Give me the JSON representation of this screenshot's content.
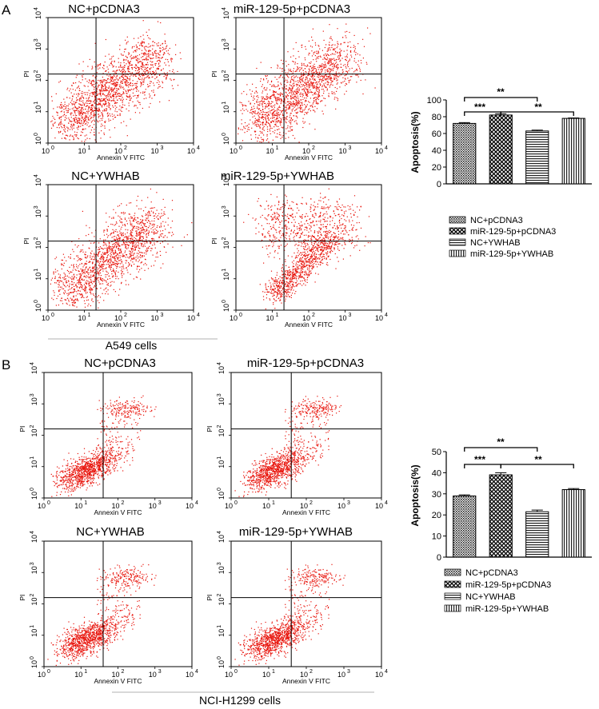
{
  "panels": [
    {
      "letter": "A",
      "cell_line": "A549 cells",
      "flow_titles": [
        "NC+pCDNA3",
        "miR-129-5p+pCDNA3",
        "NC+YWHAB",
        "miR-129-5p+YWHAB"
      ],
      "flow_xlabel": "Annexin V FITC",
      "flow_ylabel": "PI",
      "significance": [
        "**",
        "***",
        "**"
      ],
      "legend": [
        "NC+pCDNA3",
        "miR-129-5p+pCDNA3",
        "NC+YWHAB",
        "miR-129-5p+YWHAB"
      ]
    },
    {
      "letter": "B",
      "cell_line": "NCI-H1299 cells",
      "flow_titles": [
        "NC+pCDNA3",
        "miR-129-5p+pCDNA3",
        "NC+YWHAB",
        "miR-129-5p+YWHAB"
      ],
      "flow_xlabel": "Annexin V FITC",
      "flow_ylabel": "PI",
      "significance": [
        "**",
        "***",
        "**"
      ],
      "legend": [
        "NC+pCDNA3",
        "miR-129-5p+pCDNA3",
        "NC+YWHAB",
        "miR-129-5p+YWHAB"
      ]
    }
  ],
  "chart_data": [
    {
      "type": "bar",
      "categories": [
        "NC+pCDNA3",
        "miR-129-5p+pCDNA3",
        "NC+YWHAB",
        "miR-129-5p+YWHAB"
      ],
      "values": [
        72,
        82,
        63,
        78
      ],
      "errors": [
        1,
        1.5,
        1,
        0.5
      ],
      "ylabel": "Apoptosis(%)",
      "ylim": [
        0,
        100
      ],
      "yticks": [
        0,
        20,
        40,
        60,
        80,
        100
      ],
      "patterns": [
        "dense-dots",
        "checker",
        "horizontal-lines",
        "vertical-lines"
      ]
    },
    {
      "type": "bar",
      "categories": [
        "NC+pCDNA3",
        "miR-129-5p+pCDNA3",
        "NC+YWHAB",
        "miR-129-5p+YWHAB"
      ],
      "values": [
        29,
        39,
        21.5,
        32
      ],
      "errors": [
        0.5,
        1,
        0.8,
        0.5
      ],
      "ylabel": "Apoptosis(%)",
      "ylim": [
        0,
        50
      ],
      "yticks": [
        0,
        10,
        20,
        30,
        40,
        50
      ],
      "patterns": [
        "dense-dots",
        "checker",
        "horizontal-lines",
        "vertical-lines"
      ]
    }
  ]
}
